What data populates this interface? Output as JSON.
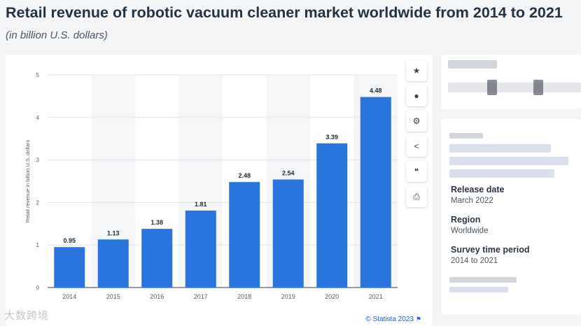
{
  "page": {
    "title": "Retail revenue of robotic vacuum cleaner market worldwide from 2014 to 2021",
    "subtitle": "(in billion U.S. dollars)"
  },
  "chart_data": {
    "type": "bar",
    "title": "Retail revenue of robotic vacuum cleaner market worldwide from 2014 to 2021",
    "subtitle": "(in billion U.S. dollars)",
    "xlabel": "",
    "ylabel": "Retail revenue in billion U.S. dollars",
    "categories": [
      "2014",
      "2015",
      "2016",
      "2017",
      "2018",
      "2019",
      "2020",
      "2021"
    ],
    "values": [
      0.95,
      1.13,
      1.38,
      1.81,
      2.48,
      2.54,
      3.39,
      4.48
    ],
    "value_labels": [
      "0.95",
      "1.13",
      "1.38",
      "1.81",
      "2.48",
      "2.54",
      "3.39",
      "4.48"
    ],
    "ylim": [
      0,
      5
    ],
    "yticks": [
      "0",
      "1",
      "2",
      "3",
      "4",
      "5"
    ],
    "grid": true,
    "bar_color": "#2876dd",
    "credit": "© Statista 2023"
  },
  "toolbar": {
    "items": [
      {
        "name": "favorite-button",
        "icon": "★"
      },
      {
        "name": "notification-button",
        "icon": "🔔"
      },
      {
        "name": "settings-button",
        "icon": "⚙"
      },
      {
        "name": "share-button",
        "icon": "⋖"
      },
      {
        "name": "cite-button",
        "icon": "❝"
      },
      {
        "name": "print-button",
        "icon": "⎙"
      }
    ]
  },
  "info": {
    "release_label": "Release date",
    "release_value": "March 2022",
    "region_label": "Region",
    "region_value": "Worldwide",
    "survey_label": "Survey time period",
    "survey_value": "2014 to 2021"
  },
  "watermark": "大数跨境"
}
